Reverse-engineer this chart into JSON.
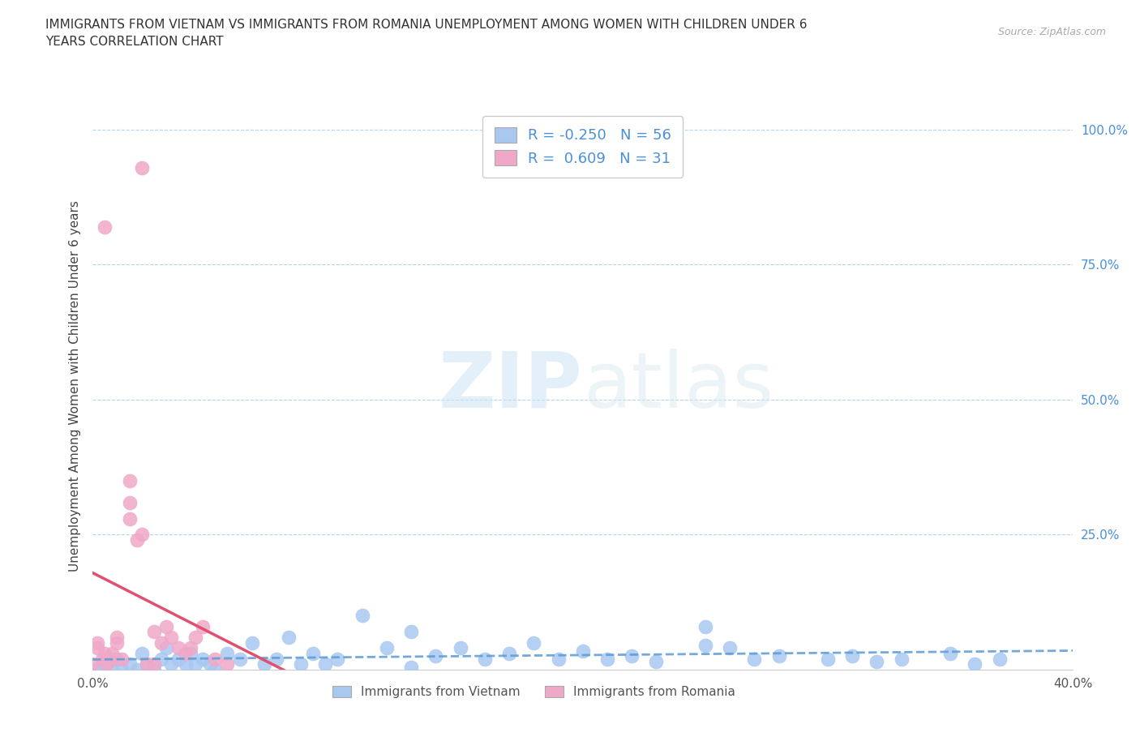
{
  "title": "IMMIGRANTS FROM VIETNAM VS IMMIGRANTS FROM ROMANIA UNEMPLOYMENT AMONG WOMEN WITH CHILDREN UNDER 6\nYEARS CORRELATION CHART",
  "source": "Source: ZipAtlas.com",
  "ylabel": "Unemployment Among Women with Children Under 6 years",
  "xlim": [
    0.0,
    0.4
  ],
  "ylim": [
    0.0,
    1.05
  ],
  "xticks": [
    0.0,
    0.05,
    0.1,
    0.15,
    0.2,
    0.25,
    0.3,
    0.35,
    0.4
  ],
  "yticks_right": [
    0.0,
    0.25,
    0.5,
    0.75,
    1.0
  ],
  "ytick_labels_right": [
    "",
    "25.0%",
    "50.0%",
    "75.0%",
    "100.0%"
  ],
  "vietnam_color": "#a8c8f0",
  "romania_color": "#f0a8c8",
  "trend_vietnam_color": "#5b9bd5",
  "trend_romania_color": "#e05070",
  "R_vietnam": -0.25,
  "N_vietnam": 56,
  "R_romania": 0.609,
  "N_romania": 31,
  "watermark_zip": "ZIP",
  "watermark_atlas": "atlas",
  "legend_vietnam": "Immigrants from Vietnam",
  "legend_romania": "Immigrants from Romania",
  "vietnam_x": [
    0.002,
    0.005,
    0.008,
    0.01,
    0.012,
    0.015,
    0.018,
    0.02,
    0.022,
    0.025,
    0.028,
    0.03,
    0.032,
    0.035,
    0.038,
    0.04,
    0.042,
    0.045,
    0.048,
    0.05,
    0.055,
    0.06,
    0.065,
    0.07,
    0.075,
    0.08,
    0.085,
    0.09,
    0.095,
    0.1,
    0.11,
    0.12,
    0.13,
    0.14,
    0.15,
    0.16,
    0.17,
    0.18,
    0.19,
    0.2,
    0.21,
    0.22,
    0.23,
    0.25,
    0.26,
    0.27,
    0.28,
    0.3,
    0.31,
    0.32,
    0.33,
    0.35,
    0.36,
    0.37,
    0.25,
    0.13
  ],
  "vietnam_y": [
    0.0,
    0.01,
    0.0,
    0.02,
    0.0,
    0.01,
    0.0,
    0.03,
    0.01,
    0.0,
    0.02,
    0.04,
    0.01,
    0.02,
    0.01,
    0.03,
    0.01,
    0.02,
    0.01,
    0.0,
    0.03,
    0.02,
    0.05,
    0.01,
    0.02,
    0.06,
    0.01,
    0.03,
    0.01,
    0.02,
    0.1,
    0.04,
    0.07,
    0.025,
    0.04,
    0.02,
    0.03,
    0.05,
    0.02,
    0.035,
    0.02,
    0.025,
    0.015,
    0.08,
    0.04,
    0.02,
    0.025,
    0.02,
    0.025,
    0.015,
    0.02,
    0.03,
    0.01,
    0.02,
    0.045,
    0.005
  ],
  "romania_x": [
    0.0,
    0.002,
    0.004,
    0.005,
    0.006,
    0.008,
    0.01,
    0.012,
    0.015,
    0.018,
    0.02,
    0.022,
    0.025,
    0.028,
    0.03,
    0.032,
    0.035,
    0.038,
    0.04,
    0.042,
    0.045,
    0.05,
    0.055,
    0.005,
    0.01,
    0.015,
    0.02,
    0.025,
    0.002,
    0.008,
    0.015
  ],
  "romania_y": [
    0.01,
    0.05,
    0.02,
    0.82,
    0.01,
    0.03,
    0.06,
    0.02,
    0.28,
    0.24,
    0.93,
    0.01,
    0.07,
    0.05,
    0.08,
    0.06,
    0.04,
    0.03,
    0.04,
    0.06,
    0.08,
    0.02,
    0.01,
    0.03,
    0.05,
    0.31,
    0.25,
    0.01,
    0.04,
    0.02,
    0.35
  ],
  "trend_vietnam_line_style": "--",
  "trend_romania_line_style": "-"
}
